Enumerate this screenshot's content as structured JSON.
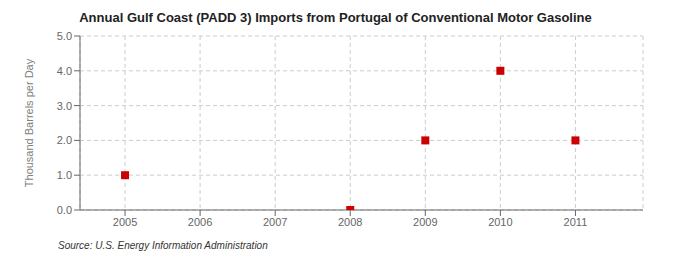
{
  "chart_data": {
    "type": "scatter",
    "title": "Annual Gulf Coast (PADD 3) Imports from Portugal of Conventional Motor Gasoline",
    "y_label": "Thousand Barrels per Day",
    "annotation": "Source: U.S. Energy Information Administration",
    "x": [
      2005,
      2008,
      2009,
      2010,
      2011
    ],
    "values": [
      1.0,
      0.0,
      2.0,
      4.0,
      2.0
    ],
    "color": "#cc0000",
    "marker": "square",
    "xlim": [
      2004.4,
      2011.9
    ],
    "xticks": [
      2005,
      2006,
      2007,
      2008,
      2009,
      2010,
      2011
    ],
    "ylim": [
      0.0,
      5.0
    ],
    "yticks": [
      {
        "value": 0.0,
        "label": "0.0"
      },
      {
        "value": 1.0,
        "label": "1.0"
      },
      {
        "value": 2.0,
        "label": "2.0"
      },
      {
        "value": 3.0,
        "label": "3.0"
      },
      {
        "value": 4.0,
        "label": "4.0"
      },
      {
        "value": 5.0,
        "label": "5.0"
      }
    ],
    "grid": true
  }
}
